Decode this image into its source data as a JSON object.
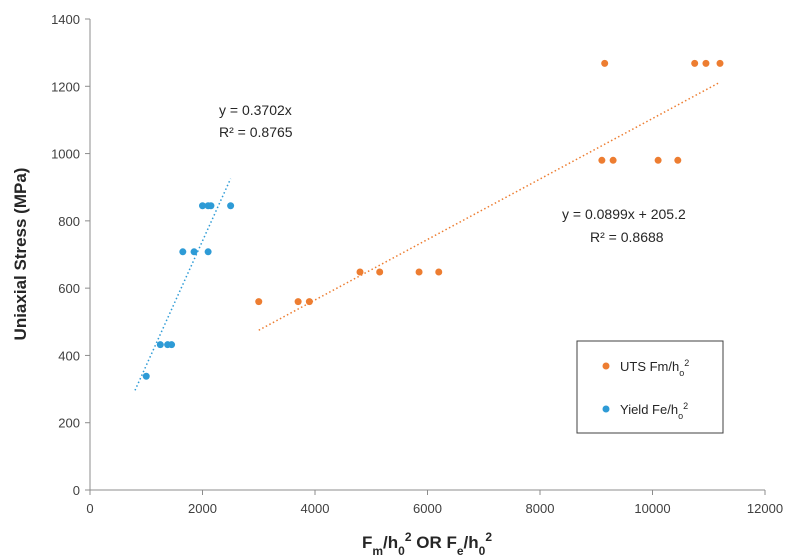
{
  "chart_data": {
    "type": "scatter",
    "title": "",
    "xlabel": "F_m/h_0^2 OR F_e/h_0^2",
    "xlabel_parts": {
      "f1": "F",
      "s1": "m",
      "mid1": "/h",
      "s2": "0",
      "sup1": "2",
      "or": " OR F",
      "s3": "e",
      "mid2": "/h",
      "s4": "0",
      "sup2": "2"
    },
    "ylabel": "Uniaxial Stress (MPa)",
    "xlim": [
      0,
      12000
    ],
    "ylim": [
      0,
      1400
    ],
    "xticks": [
      0,
      2000,
      4000,
      6000,
      8000,
      10000,
      12000
    ],
    "xtick_labels": [
      "0",
      "2000",
      "4000",
      "6000",
      "8000",
      "10000",
      "12000"
    ],
    "yticks": [
      0,
      200,
      400,
      600,
      800,
      1000,
      1200,
      1400
    ],
    "ytick_labels": [
      "0",
      "200",
      "400",
      "600",
      "800",
      "1000",
      "1200",
      "1400"
    ],
    "grid": "none",
    "legend_position": "bottom-right",
    "series": [
      {
        "name": "UTS Fm/h0²",
        "legend_label": {
          "base": "UTS Fm/h",
          "sub": "o",
          "sup": "2"
        },
        "color": "#ED7D31",
        "points": [
          [
            3000,
            560
          ],
          [
            3700,
            560
          ],
          [
            3900,
            560
          ],
          [
            4800,
            648
          ],
          [
            5150,
            648
          ],
          [
            5850,
            648
          ],
          [
            6200,
            648
          ],
          [
            9100,
            980
          ],
          [
            9300,
            980
          ],
          [
            10100,
            980
          ],
          [
            10450,
            980
          ],
          [
            9150,
            1268
          ],
          [
            10750,
            1268
          ],
          [
            10950,
            1268
          ],
          [
            11200,
            1268
          ]
        ],
        "trendline": {
          "slope": 0.0899,
          "intercept": 205.2,
          "x_range": [
            3000,
            11200
          ],
          "equation": "y = 0.0899x + 205.2",
          "r2": "R² = 0.8688"
        }
      },
      {
        "name": "Yield Fe/h0²",
        "legend_label": {
          "base": "Yield Fe/h",
          "sub": "o",
          "sup": "2"
        },
        "color": "#2E9BD6",
        "points": [
          [
            1000,
            338
          ],
          [
            1250,
            432
          ],
          [
            1380,
            432
          ],
          [
            1450,
            432
          ],
          [
            1650,
            708
          ],
          [
            1850,
            708
          ],
          [
            2100,
            708
          ],
          [
            2000,
            845
          ],
          [
            2100,
            845
          ],
          [
            2150,
            845
          ],
          [
            2500,
            845
          ]
        ],
        "trendline": {
          "slope": 0.3702,
          "intercept": 0,
          "x_range": [
            800,
            2500
          ],
          "equation": "y = 0.3702x",
          "r2": "R² = 0.8765"
        }
      }
    ]
  }
}
